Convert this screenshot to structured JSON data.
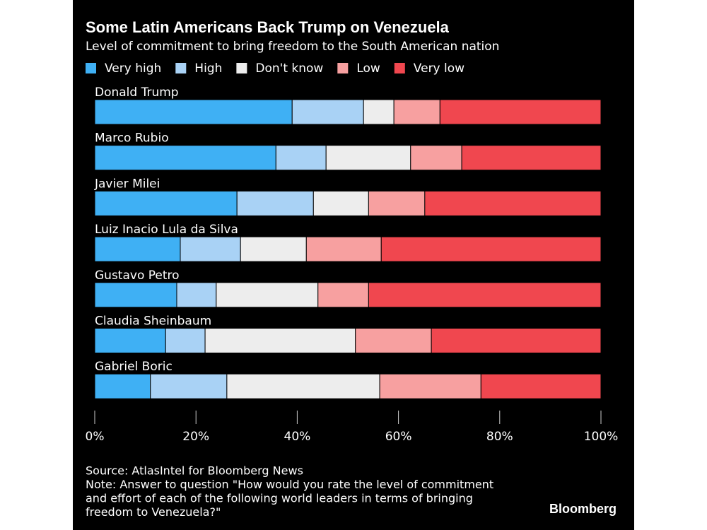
{
  "chart_data": {
    "type": "stacked-bar-horizontal",
    "title": "Some Latin Americans Back Trump on Venezuela",
    "subtitle": "Level of commitment to bring freedom to the South American nation",
    "categories": [
      "Donald Trump",
      "Marco Rubio",
      "Javier Milei",
      "Luiz Inacio Lula da Silva",
      "Gustavo Petro",
      "Claudia Sheinbaum",
      "Gabriel Boric"
    ],
    "series": [
      {
        "name": "Very high",
        "color": "#3fb0f4",
        "values": [
          39.0,
          35.8,
          28.1,
          16.9,
          16.2,
          14.0,
          11.0
        ]
      },
      {
        "name": "High",
        "color": "#a9d2f5",
        "values": [
          14.1,
          9.9,
          15.1,
          11.9,
          7.8,
          7.8,
          15.1
        ]
      },
      {
        "name": "Don't know",
        "color": "#ededed",
        "values": [
          6.0,
          16.7,
          10.9,
          13.0,
          20.1,
          29.7,
          30.2
        ]
      },
      {
        "name": "Low",
        "color": "#f7a0a0",
        "values": [
          9.1,
          10.1,
          11.1,
          14.8,
          10.0,
          15.0,
          20.0
        ]
      },
      {
        "name": "Very low",
        "color": "#f0474f",
        "values": [
          31.8,
          27.5,
          34.8,
          43.4,
          45.9,
          33.5,
          23.7
        ]
      }
    ],
    "xlim": [
      0,
      100
    ],
    "xticks": [
      {
        "value": 0,
        "label": "0%"
      },
      {
        "value": 20,
        "label": "20%"
      },
      {
        "value": 40,
        "label": "40%"
      },
      {
        "value": 60,
        "label": "60%"
      },
      {
        "value": 80,
        "label": "80%"
      },
      {
        "value": 100,
        "label": "100%"
      }
    ],
    "footnotes": [
      "Source: AtlasIntel for Bloomberg News",
      "Note: Answer to question \"How would you rate the level of commitment",
      "and effort of each of the following world leaders in terms of bringing",
      "freedom to Venezuela?\""
    ],
    "brand": "Bloomberg"
  }
}
